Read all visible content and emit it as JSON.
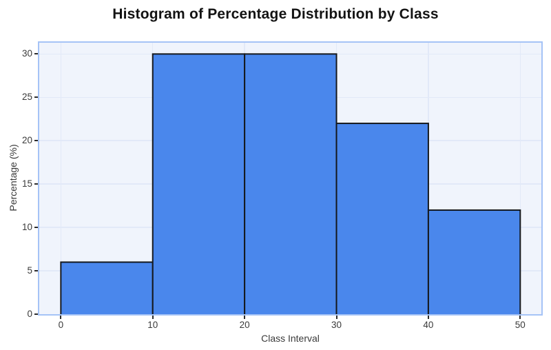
{
  "chart_data": {
    "type": "bar",
    "subtype": "histogram",
    "title": "Histogram of Percentage Distribution by Class",
    "xlabel": "Class Interval",
    "ylabel": "Percentage (%)",
    "bin_edges": [
      0,
      10,
      20,
      30,
      40,
      50
    ],
    "values": [
      6,
      30,
      30,
      22,
      12
    ],
    "x_ticks": [
      0,
      10,
      20,
      30,
      40,
      50
    ],
    "y_ticks": [
      0,
      5,
      10,
      15,
      20,
      25,
      30
    ],
    "xlim": [
      -2.35,
      52.3
    ],
    "ylim": [
      0,
      31.3
    ],
    "grid": true,
    "legend": false,
    "colors": {
      "bar_fill": "#4a87ec",
      "bar_stroke": "#15181c",
      "plot_bg": "#f0f4fc",
      "grid_line": "#e2e9f8",
      "plot_border": "#a5c3f6",
      "tick_mark": "#2b2b2b",
      "text": "#3a3a3a",
      "title_text": "#131313"
    }
  }
}
